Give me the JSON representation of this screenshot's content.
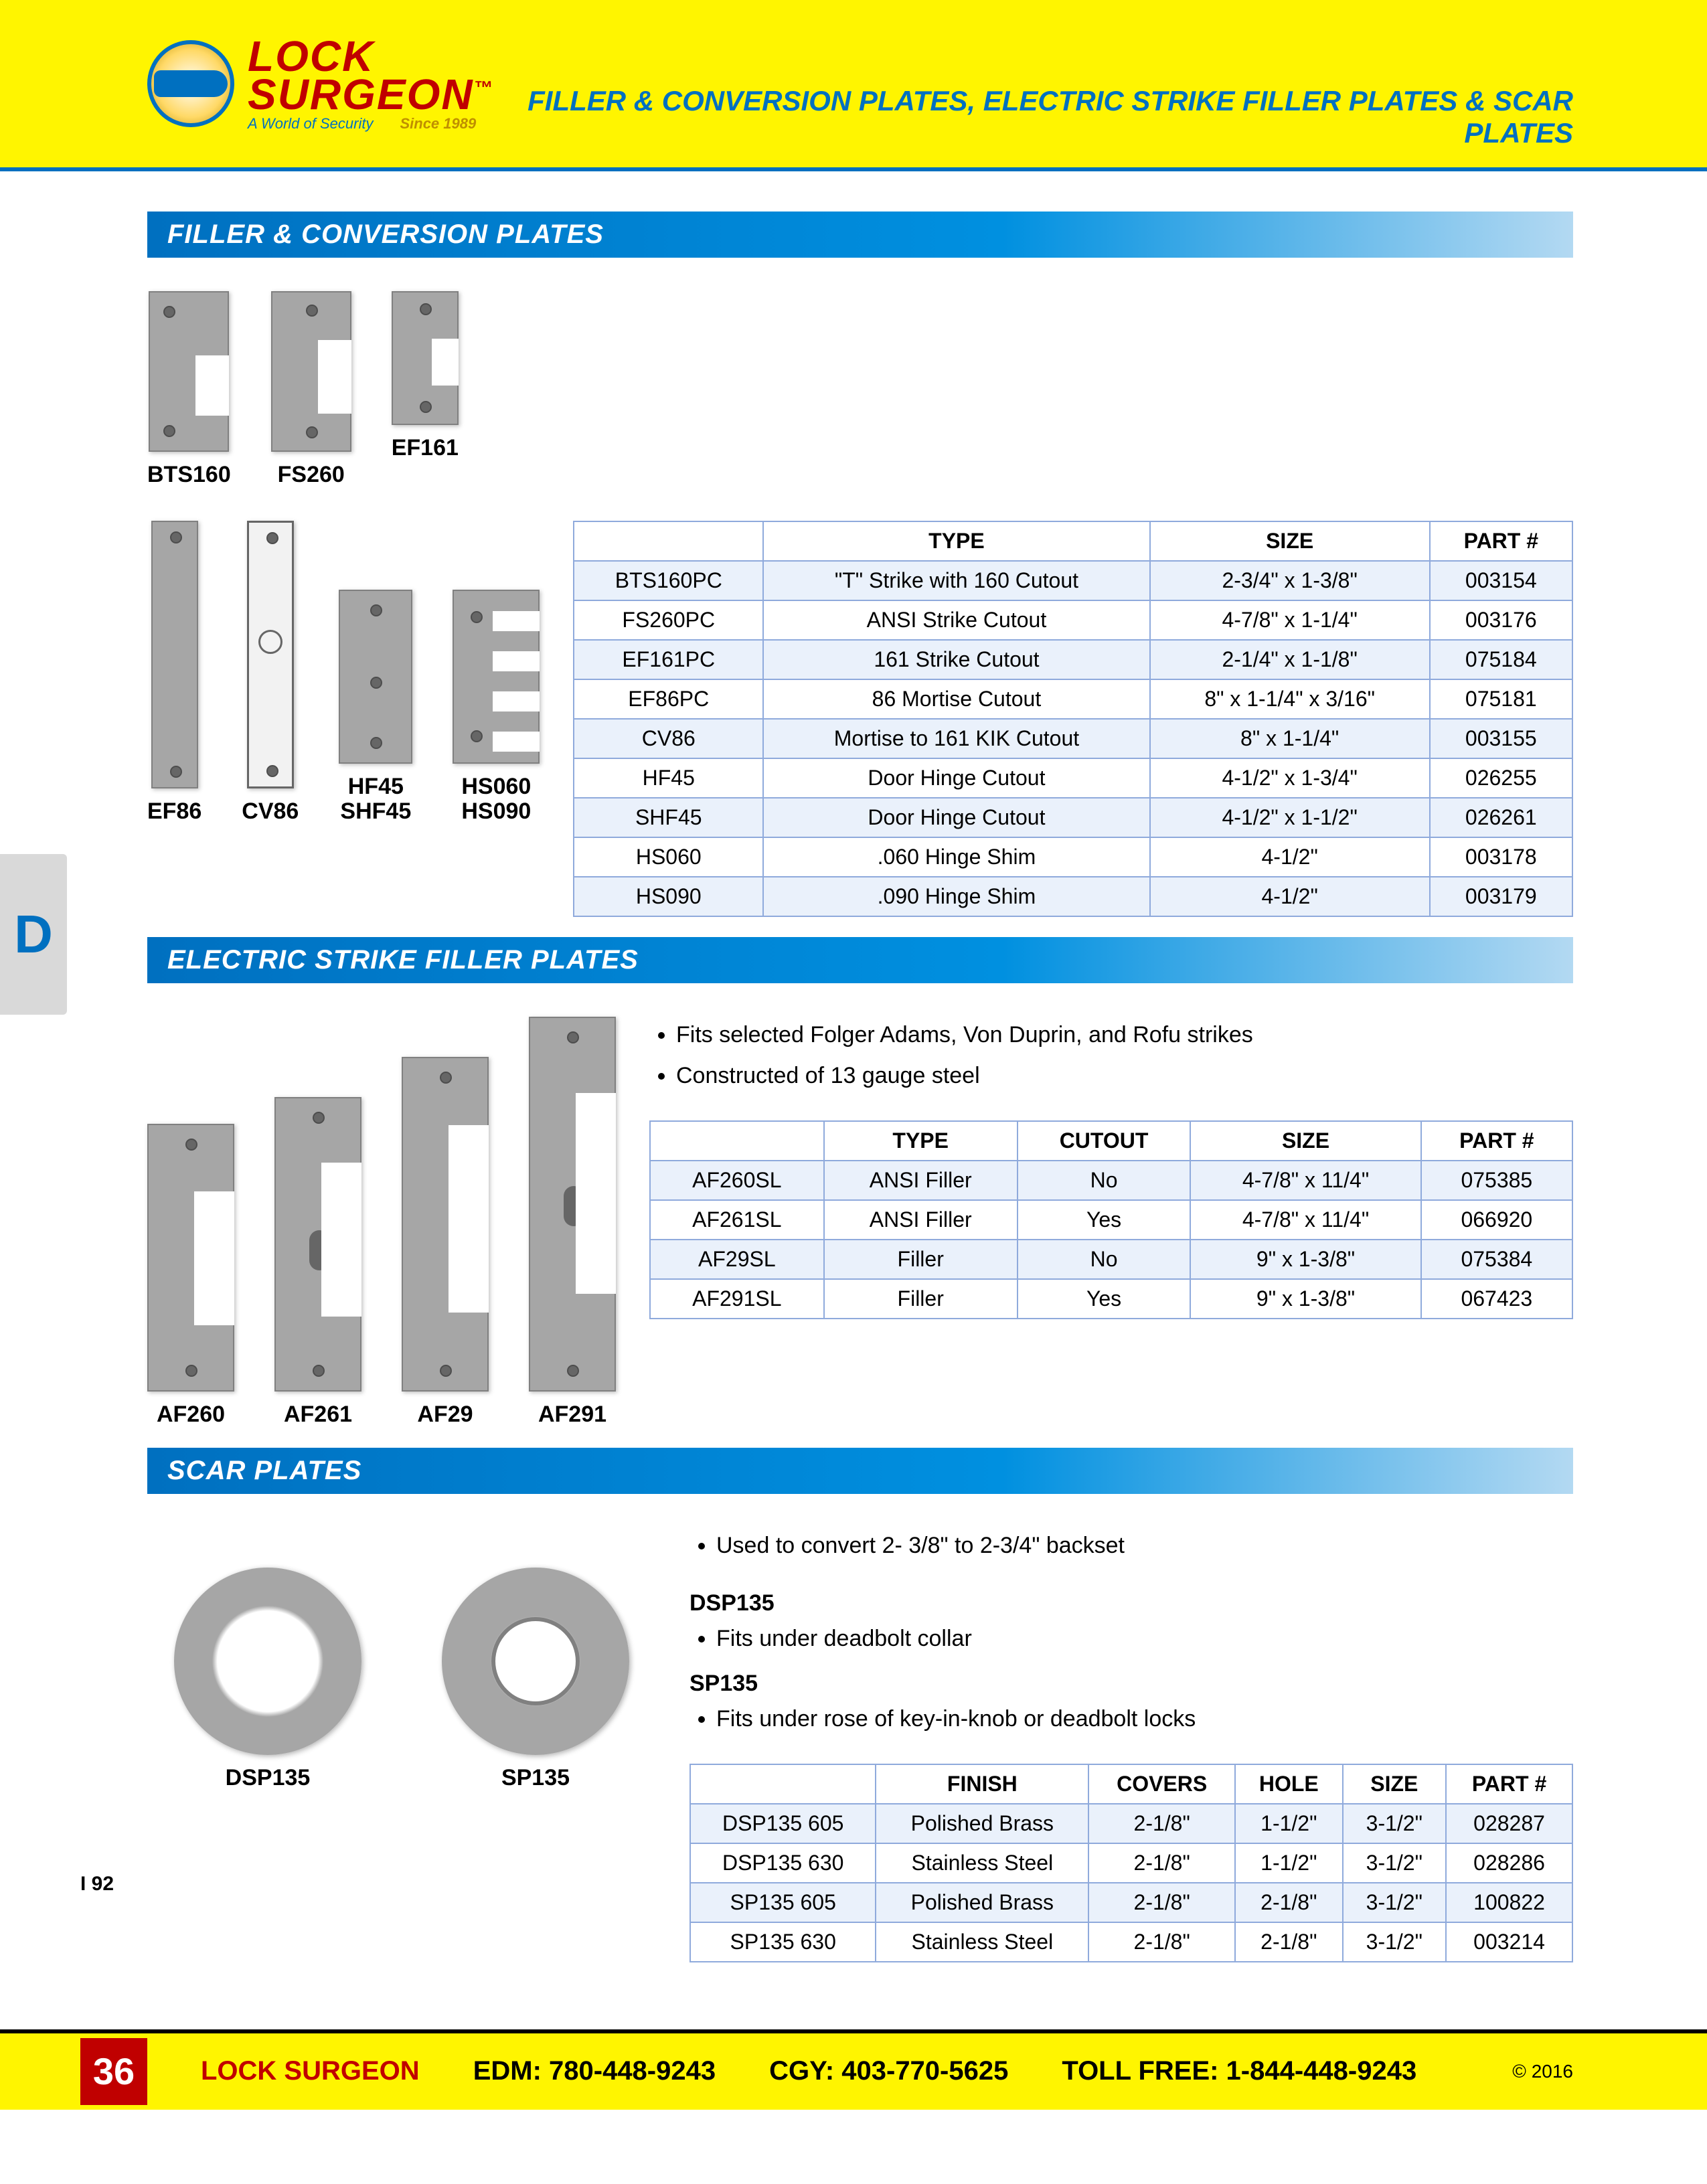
{
  "header": {
    "brand_line1": "LOCK",
    "brand_line2": "SURGEON",
    "tagline": "A World of Security",
    "since": "Since 1989",
    "tm": "™",
    "page_title": "FILLER & CONVERSION PLATES, ELECTRIC STRIKE FILLER PLATES & SCAR PLATES"
  },
  "side_tab": "D",
  "section1": {
    "title": "FILLER & CONVERSION PLATES",
    "products_row1": [
      {
        "label": "BTS160",
        "cls": "plate-bts160"
      },
      {
        "label": "FS260",
        "cls": "plate-fs260"
      },
      {
        "label": "EF161",
        "cls": "plate-ef161"
      }
    ],
    "products_row2": [
      {
        "label": "EF86",
        "cls": "plate-ef86"
      },
      {
        "label": "CV86",
        "cls": "plate-cv86"
      },
      {
        "label": "HF45\nSHF45",
        "cls": "plate-hf45"
      },
      {
        "label": "HS060\nHS090",
        "cls": "plate-hs"
      }
    ],
    "table": {
      "columns": [
        "",
        "TYPE",
        "SIZE",
        "PART #"
      ],
      "rows": [
        [
          "BTS160PC",
          "\"T\" Strike with 160 Cutout",
          "2-3/4\" x 1-3/8\"",
          "003154"
        ],
        [
          "FS260PC",
          "ANSI Strike Cutout",
          "4-7/8\" x 1-1/4\"",
          "003176"
        ],
        [
          "EF161PC",
          "161 Strike Cutout",
          "2-1/4\" x 1-1/8\"",
          "075184"
        ],
        [
          "EF86PC",
          "86 Mortise Cutout",
          "8\" x 1-1/4\" x 3/16\"",
          "075181"
        ],
        [
          "CV86",
          "Mortise to 161 KIK Cutout",
          "8\" x 1-1/4\"",
          "003155"
        ],
        [
          "HF45",
          "Door Hinge Cutout",
          "4-1/2\" x 1-3/4\"",
          "026255"
        ],
        [
          "SHF45",
          "Door Hinge Cutout",
          "4-1/2\" x 1-1/2\"",
          "026261"
        ],
        [
          "HS060",
          ".060 Hinge Shim",
          "4-1/2\"",
          "003178"
        ],
        [
          "HS090",
          ".090 Hinge Shim",
          "4-1/2\"",
          "003179"
        ]
      ]
    }
  },
  "section2": {
    "title": "ELECTRIC STRIKE FILLER PLATES",
    "bullets": [
      "Fits selected Folger Adams, Von Duprin, and Rofu strikes",
      "Constructed of 13 gauge steel"
    ],
    "products": [
      {
        "label": "AF260",
        "cls": "plate-af260"
      },
      {
        "label": "AF261",
        "cls": "plate-af261"
      },
      {
        "label": "AF29",
        "cls": "plate-af29"
      },
      {
        "label": "AF291",
        "cls": "plate-af291"
      }
    ],
    "table": {
      "columns": [
        "",
        "TYPE",
        "CUTOUT",
        "SIZE",
        "PART #"
      ],
      "rows": [
        [
          "AF260SL",
          "ANSI Filler",
          "No",
          "4-7/8\" x 11/4\"",
          "075385"
        ],
        [
          "AF261SL",
          "ANSI Filler",
          "Yes",
          "4-7/8\" x 11/4\"",
          "066920"
        ],
        [
          "AF29SL",
          "Filler",
          "No",
          "9\" x 1-3/8\"",
          "075384"
        ],
        [
          "AF291SL",
          "Filler",
          "Yes",
          "9\" x 1-3/8\"",
          "067423"
        ]
      ]
    }
  },
  "section3": {
    "title": "SCAR PLATES",
    "intro_bullets": [
      "Used to convert 2- 3/8\" to 2-3/4\" backset"
    ],
    "dsp_head": "DSP135",
    "dsp_bullets": [
      "Fits under deadbolt collar"
    ],
    "sp_head": "SP135",
    "sp_bullets": [
      "Fits under rose of key-in-knob or deadbolt locks"
    ],
    "products": [
      {
        "label": "DSP135",
        "cls": "ring"
      },
      {
        "label": "SP135",
        "cls": "ring ring-sp"
      }
    ],
    "table": {
      "columns": [
        "",
        "FINISH",
        "COVERS",
        "HOLE",
        "SIZE",
        "PART #"
      ],
      "rows": [
        [
          "DSP135 605",
          "Polished Brass",
          "2-1/8\"",
          "1-1/2\"",
          "3-1/2\"",
          "028287"
        ],
        [
          "DSP135 630",
          "Stainless Steel",
          "2-1/8\"",
          "1-1/2\"",
          "3-1/2\"",
          "028286"
        ],
        [
          "SP135 605",
          "Polished Brass",
          "2-1/8\"",
          "2-1/8\"",
          "3-1/2\"",
          "100822"
        ],
        [
          "SP135 630",
          "Stainless Steel",
          "2-1/8\"",
          "2-1/8\"",
          "3-1/2\"",
          "003214"
        ]
      ]
    }
  },
  "footer": {
    "index_code": "I 92",
    "page_num": "36",
    "brand": "LOCK SURGEON",
    "edm": "EDM: 780-448-9243",
    "cgy": "CGY: 403-770-5625",
    "toll": "TOLL FREE: 1-844-448-9243",
    "copyright": "© 2016"
  },
  "colors": {
    "yellow": "#fff500",
    "blue": "#0070c0",
    "red": "#c00000",
    "plate": "#a6a6a6",
    "table_border": "#8faadc",
    "row_alt": "#eaf1fb"
  }
}
